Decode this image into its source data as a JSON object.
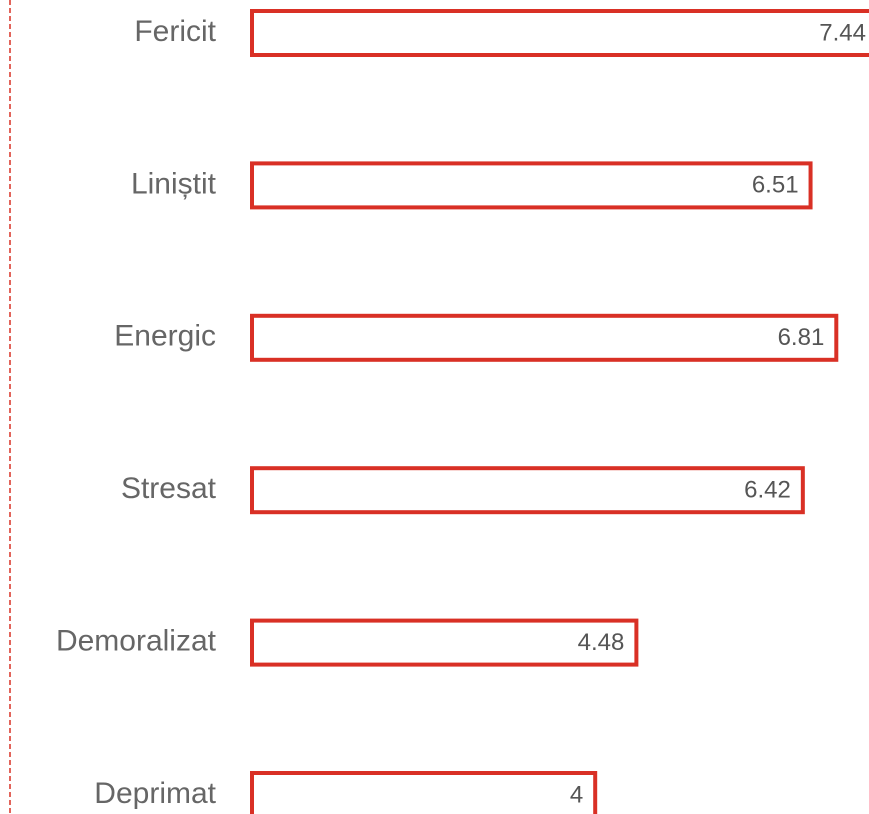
{
  "chart_data": {
    "type": "bar",
    "orientation": "horizontal",
    "categories": [
      "Fericit",
      "Liniștit",
      "Energic",
      "Stresat",
      "Demoralizat",
      "Deprimat"
    ],
    "values": [
      7.44,
      6.51,
      6.81,
      6.42,
      4.48,
      4
    ],
    "color": "#d93025"
  }
}
